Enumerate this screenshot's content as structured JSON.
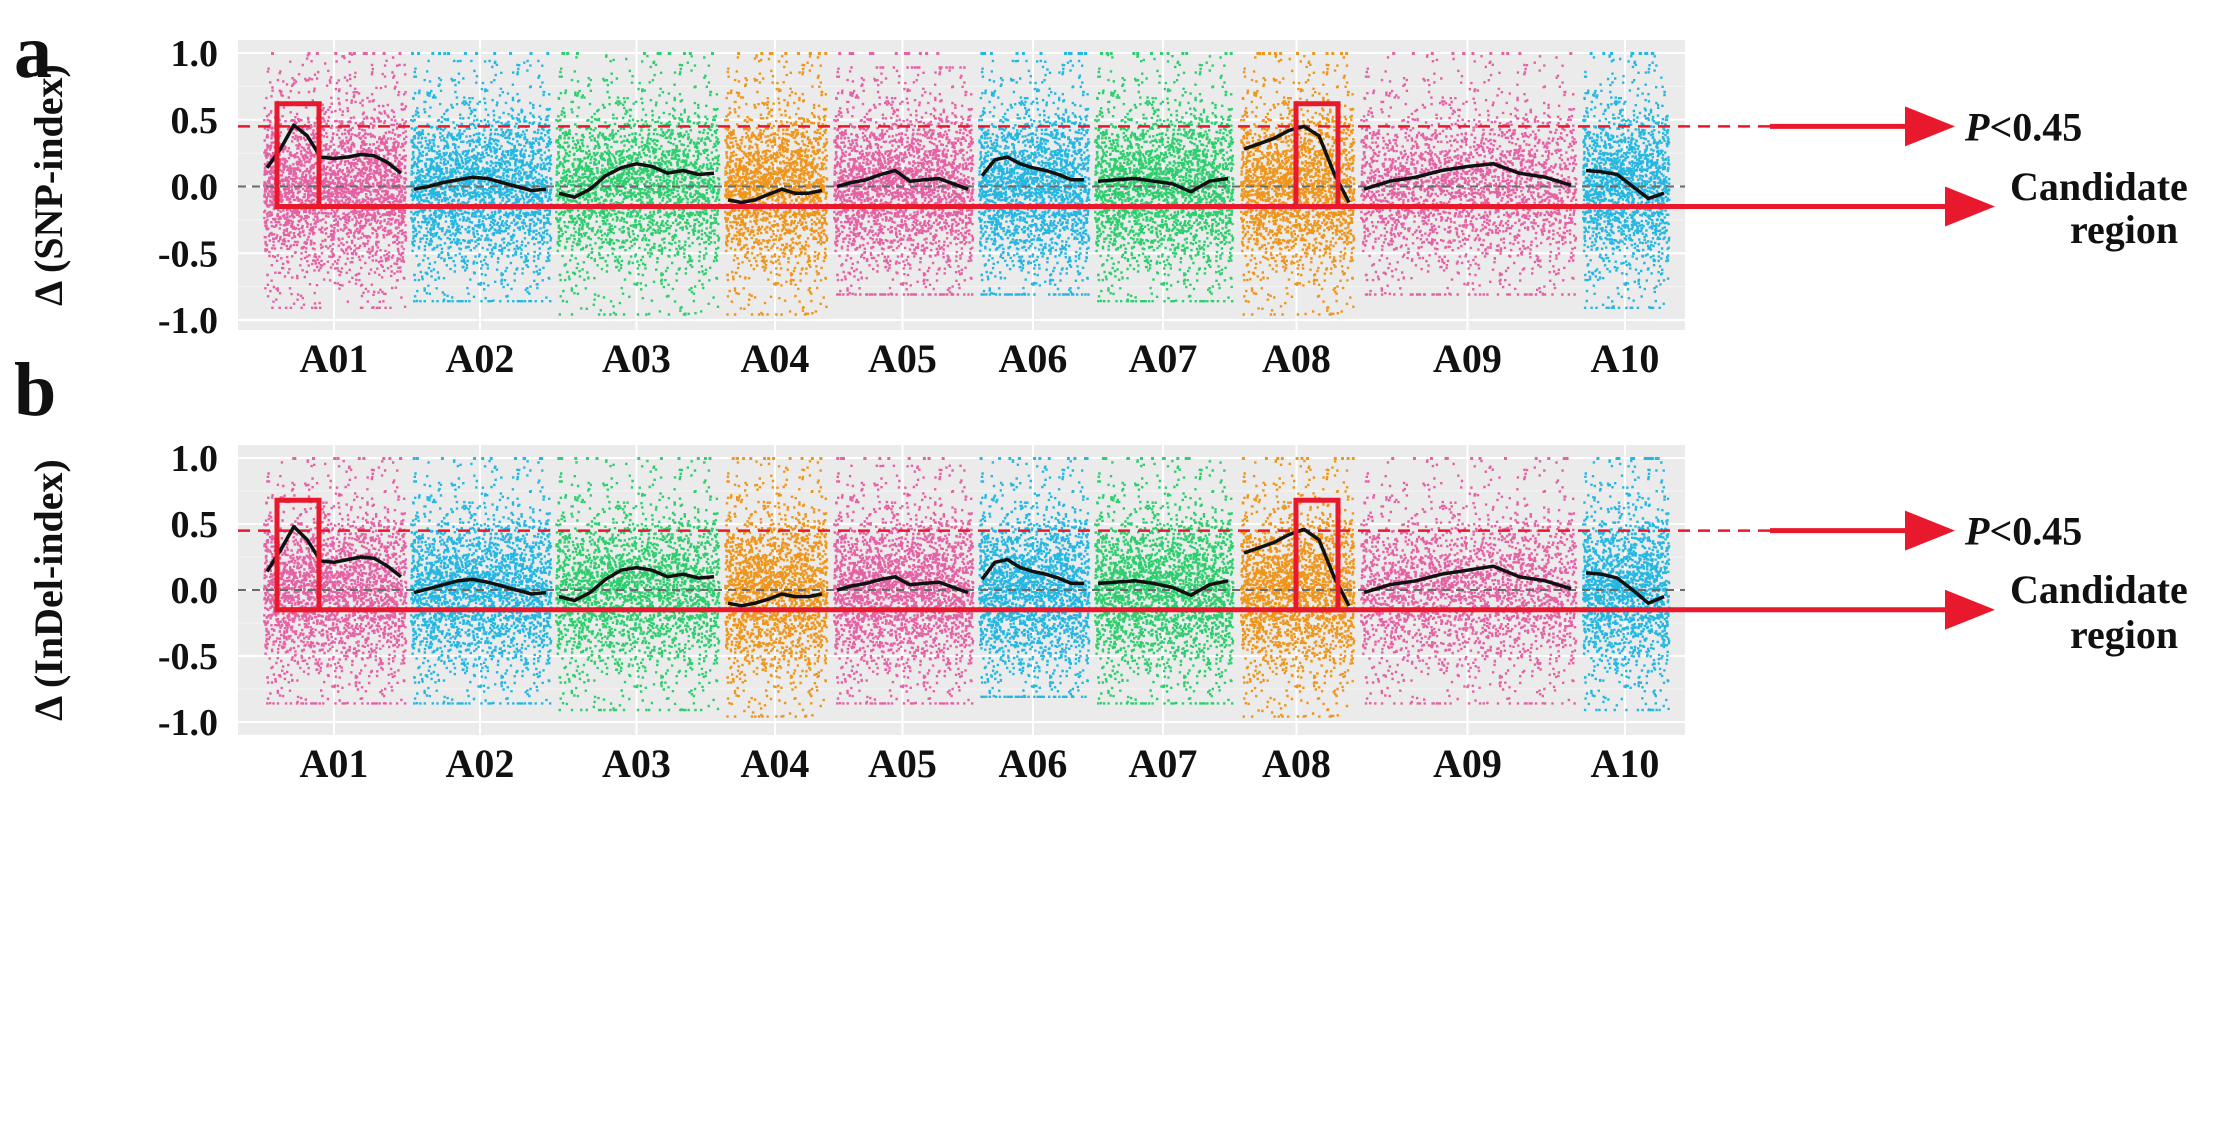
{
  "chart_data": [
    {
      "type": "scatter",
      "panel_label": "a",
      "ylabel": "Δ (SNP-index)",
      "ylim": [
        -1.0,
        1.0
      ],
      "y_ticks": [
        "1.0",
        "0.5",
        "0.0",
        "-0.5",
        "-1.0"
      ],
      "y_tick_values": [
        1.0,
        0.5,
        0.0,
        -0.5,
        -1.0
      ],
      "grid": true,
      "threshold": {
        "value": 0.45,
        "style": "dashed",
        "color": "#e8192c"
      },
      "baseline": {
        "value": 0.0,
        "style": "dashed",
        "color": "#6a6a6a"
      },
      "categories": [
        "A01",
        "A02",
        "A03",
        "A04",
        "A05",
        "A06",
        "A07",
        "A08",
        "A09",
        "A10"
      ],
      "category_colors": [
        "#e45aa0",
        "#19b4e0",
        "#22cc66",
        "#ee9010",
        "#e45aa0",
        "#19b4e0",
        "#22cc66",
        "#ee9010",
        "#e45aa0",
        "#19b4e0"
      ],
      "point_ranges": [
        {
          "name": "A01",
          "low": -0.9,
          "high": 1.0
        },
        {
          "name": "A02",
          "low": -0.85,
          "high": 0.95
        },
        {
          "name": "A03",
          "low": -0.95,
          "high": 1.0
        },
        {
          "name": "A04",
          "low": -0.95,
          "high": 1.0
        },
        {
          "name": "A05",
          "low": -0.8,
          "high": 0.9
        },
        {
          "name": "A06",
          "low": -0.8,
          "high": 0.95
        },
        {
          "name": "A07",
          "low": -0.85,
          "high": 1.0
        },
        {
          "name": "A08",
          "low": -0.95,
          "high": 1.0
        },
        {
          "name": "A09",
          "low": -0.8,
          "high": 1.0
        },
        {
          "name": "A10",
          "low": -0.9,
          "high": 1.0
        }
      ],
      "smoothed_series": [
        {
          "name": "A01",
          "values": [
            0.14,
            0.28,
            0.46,
            0.38,
            0.22,
            0.21,
            0.22,
            0.24,
            0.23,
            0.18,
            0.1
          ]
        },
        {
          "name": "A02",
          "values": [
            -0.02,
            0.0,
            0.03,
            0.05,
            0.07,
            0.06,
            0.03,
            0.0,
            -0.03,
            -0.02
          ]
        },
        {
          "name": "A03",
          "values": [
            -0.05,
            -0.08,
            -0.02,
            0.08,
            0.14,
            0.17,
            0.15,
            0.1,
            0.12,
            0.09,
            0.1
          ]
        },
        {
          "name": "A04",
          "values": [
            -0.1,
            -0.12,
            -0.1,
            -0.06,
            -0.02,
            -0.05,
            -0.05,
            -0.03
          ]
        },
        {
          "name": "A05",
          "values": [
            0.0,
            0.03,
            0.05,
            0.09,
            0.12,
            0.04,
            0.05,
            0.06,
            0.02,
            -0.02
          ]
        },
        {
          "name": "A06",
          "values": [
            0.08,
            0.2,
            0.22,
            0.17,
            0.14,
            0.12,
            0.09,
            0.05,
            0.05
          ]
        },
        {
          "name": "A07",
          "values": [
            0.04,
            0.05,
            0.06,
            0.04,
            0.02,
            -0.04,
            0.04,
            0.06
          ]
        },
        {
          "name": "A08",
          "values": [
            0.28,
            0.32,
            0.36,
            0.42,
            0.45,
            0.38,
            0.1,
            -0.12
          ]
        },
        {
          "name": "A09",
          "values": [
            -0.02,
            0.04,
            0.07,
            0.12,
            0.15,
            0.17,
            0.1,
            0.07,
            0.01
          ]
        },
        {
          "name": "A10",
          "values": [
            0.12,
            0.11,
            0.09,
            0.0,
            -0.09,
            -0.05
          ]
        }
      ],
      "candidate_boxes": [
        {
          "chromosome": "A01",
          "y_top": 0.62,
          "y_bottom": -0.15
        },
        {
          "chromosome": "A08",
          "y_top": 0.62,
          "y_bottom": -0.15
        }
      ]
    },
    {
      "type": "scatter",
      "panel_label": "b",
      "ylabel": "Δ (InDel-index)",
      "ylim": [
        -1.0,
        1.0
      ],
      "y_ticks": [
        "1.0",
        "0.5",
        "0.0",
        "-0.5",
        "-1.0"
      ],
      "y_tick_values": [
        1.0,
        0.5,
        0.0,
        -0.5,
        -1.0
      ],
      "grid": true,
      "threshold": {
        "value": 0.45,
        "style": "dashed",
        "color": "#e8192c"
      },
      "baseline": {
        "value": 0.0,
        "style": "dashed",
        "color": "#6a6a6a"
      },
      "categories": [
        "A01",
        "A02",
        "A03",
        "A04",
        "A05",
        "A06",
        "A07",
        "A08",
        "A09",
        "A10"
      ],
      "category_colors": [
        "#e45aa0",
        "#19b4e0",
        "#22cc66",
        "#ee9010",
        "#e45aa0",
        "#19b4e0",
        "#22cc66",
        "#ee9010",
        "#e45aa0",
        "#19b4e0"
      ],
      "point_ranges": [
        {
          "name": "A01",
          "low": -0.85,
          "high": 1.0
        },
        {
          "name": "A02",
          "low": -0.85,
          "high": 1.0
        },
        {
          "name": "A03",
          "low": -0.9,
          "high": 1.0
        },
        {
          "name": "A04",
          "low": -0.95,
          "high": 1.0
        },
        {
          "name": "A05",
          "low": -0.85,
          "high": 0.95
        },
        {
          "name": "A06",
          "low": -0.8,
          "high": 1.0
        },
        {
          "name": "A07",
          "low": -0.85,
          "high": 1.0
        },
        {
          "name": "A08",
          "low": -0.95,
          "high": 1.0
        },
        {
          "name": "A09",
          "low": -0.85,
          "high": 1.0
        },
        {
          "name": "A10",
          "low": -0.9,
          "high": 1.0
        }
      ],
      "smoothed_series": [
        {
          "name": "A01",
          "values": [
            0.14,
            0.3,
            0.48,
            0.38,
            0.22,
            0.21,
            0.23,
            0.25,
            0.24,
            0.18,
            0.1
          ]
        },
        {
          "name": "A02",
          "values": [
            -0.02,
            0.01,
            0.04,
            0.07,
            0.08,
            0.06,
            0.03,
            0.0,
            -0.03,
            -0.02
          ]
        },
        {
          "name": "A03",
          "values": [
            -0.05,
            -0.08,
            -0.02,
            0.08,
            0.15,
            0.17,
            0.15,
            0.1,
            0.12,
            0.09,
            0.1
          ]
        },
        {
          "name": "A04",
          "values": [
            -0.1,
            -0.12,
            -0.1,
            -0.07,
            -0.03,
            -0.05,
            -0.05,
            -0.03
          ]
        },
        {
          "name": "A05",
          "values": [
            0.0,
            0.03,
            0.05,
            0.08,
            0.1,
            0.04,
            0.05,
            0.06,
            0.02,
            -0.02
          ]
        },
        {
          "name": "A06",
          "values": [
            0.08,
            0.21,
            0.23,
            0.17,
            0.14,
            0.12,
            0.09,
            0.05,
            0.05
          ]
        },
        {
          "name": "A07",
          "values": [
            0.05,
            0.06,
            0.07,
            0.05,
            0.02,
            -0.04,
            0.04,
            0.07
          ]
        },
        {
          "name": "A08",
          "values": [
            0.28,
            0.32,
            0.36,
            0.42,
            0.46,
            0.38,
            0.1,
            -0.12
          ]
        },
        {
          "name": "A09",
          "values": [
            -0.02,
            0.04,
            0.07,
            0.12,
            0.15,
            0.18,
            0.1,
            0.07,
            0.01
          ]
        },
        {
          "name": "A10",
          "values": [
            0.13,
            0.12,
            0.09,
            0.0,
            -0.1,
            -0.05
          ]
        }
      ],
      "candidate_boxes": [
        {
          "chromosome": "A01",
          "y_top": 0.68,
          "y_bottom": -0.15
        },
        {
          "chromosome": "A08",
          "y_top": 0.68,
          "y_bottom": -0.15
        }
      ]
    }
  ],
  "annotations": {
    "threshold_label_italic": "P",
    "threshold_label_rest": "<0.45",
    "candidate_label_line1": "Candidate",
    "candidate_label_line2": "region",
    "arrow_color": "#e8192c"
  }
}
